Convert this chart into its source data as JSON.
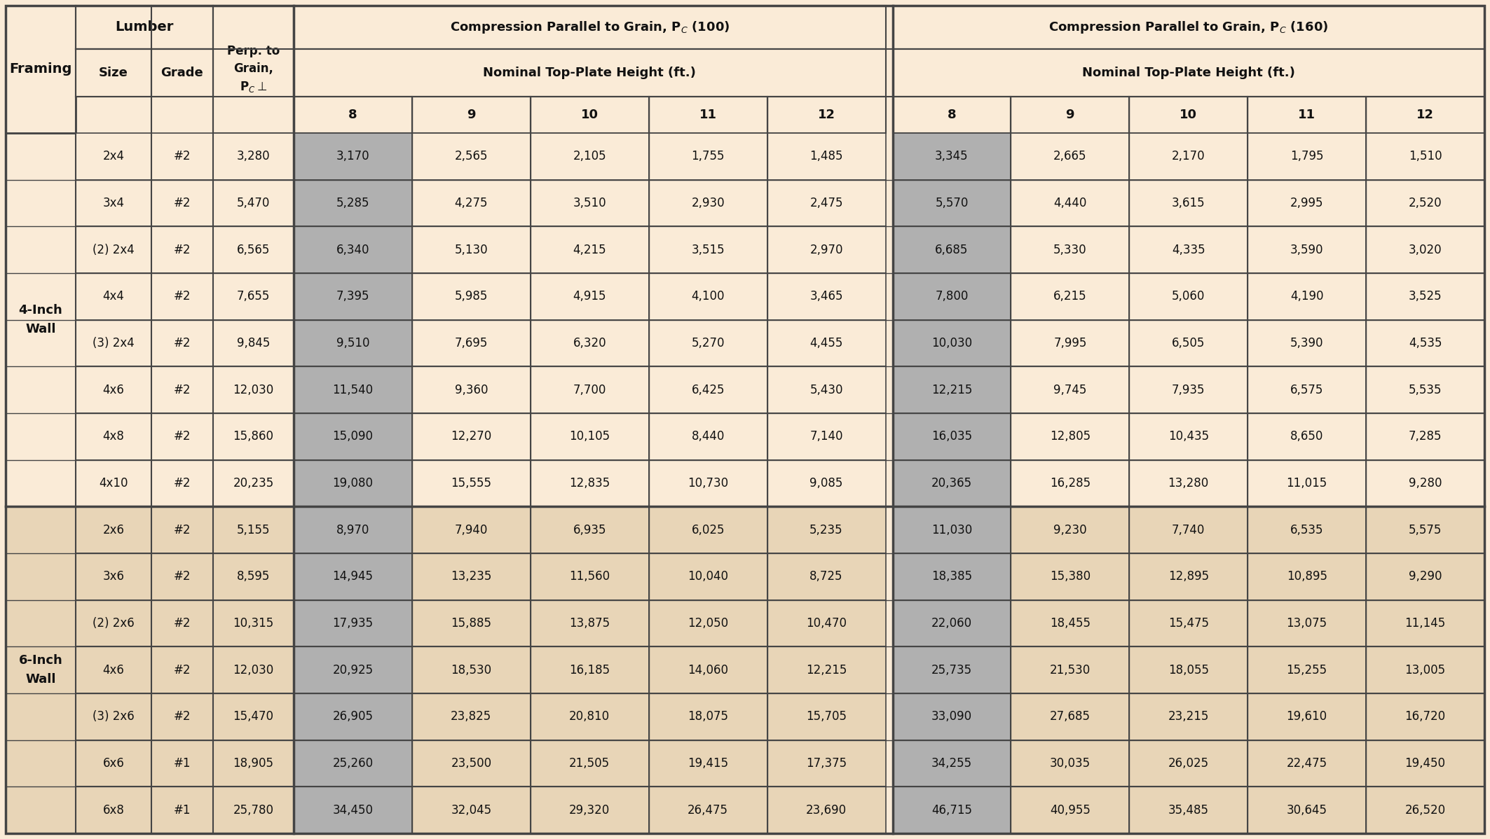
{
  "bg_color": "#faebd7",
  "six_inch_bg": "#e8d5b7",
  "gray_col_bg": "#b0b0b0",
  "border_color": "#444444",
  "text_color": "#111111",
  "col_headers_heights": [
    "8",
    "9",
    "10",
    "11",
    "12"
  ],
  "rows_4inch": [
    {
      "size": "2x4",
      "grade": "#2",
      "perp": "3,280",
      "pc100": [
        "3,170",
        "2,565",
        "2,105",
        "1,755",
        "1,485"
      ],
      "pc160": [
        "3,345",
        "2,665",
        "2,170",
        "1,795",
        "1,510"
      ]
    },
    {
      "size": "3x4",
      "grade": "#2",
      "perp": "5,470",
      "pc100": [
        "5,285",
        "4,275",
        "3,510",
        "2,930",
        "2,475"
      ],
      "pc160": [
        "5,570",
        "4,440",
        "3,615",
        "2,995",
        "2,520"
      ]
    },
    {
      "size": "(2) 2x4",
      "grade": "#2",
      "perp": "6,565",
      "pc100": [
        "6,340",
        "5,130",
        "4,215",
        "3,515",
        "2,970"
      ],
      "pc160": [
        "6,685",
        "5,330",
        "4,335",
        "3,590",
        "3,020"
      ]
    },
    {
      "size": "4x4",
      "grade": "#2",
      "perp": "7,655",
      "pc100": [
        "7,395",
        "5,985",
        "4,915",
        "4,100",
        "3,465"
      ],
      "pc160": [
        "7,800",
        "6,215",
        "5,060",
        "4,190",
        "3,525"
      ]
    },
    {
      "size": "(3) 2x4",
      "grade": "#2",
      "perp": "9,845",
      "pc100": [
        "9,510",
        "7,695",
        "6,320",
        "5,270",
        "4,455"
      ],
      "pc160": [
        "10,030",
        "7,995",
        "6,505",
        "5,390",
        "4,535"
      ]
    },
    {
      "size": "4x6",
      "grade": "#2",
      "perp": "12,030",
      "pc100": [
        "11,540",
        "9,360",
        "7,700",
        "6,425",
        "5,430"
      ],
      "pc160": [
        "12,215",
        "9,745",
        "7,935",
        "6,575",
        "5,535"
      ]
    },
    {
      "size": "4x8",
      "grade": "#2",
      "perp": "15,860",
      "pc100": [
        "15,090",
        "12,270",
        "10,105",
        "8,440",
        "7,140"
      ],
      "pc160": [
        "16,035",
        "12,805",
        "10,435",
        "8,650",
        "7,285"
      ]
    },
    {
      "size": "4x10",
      "grade": "#2",
      "perp": "20,235",
      "pc100": [
        "19,080",
        "15,555",
        "12,835",
        "10,730",
        "9,085"
      ],
      "pc160": [
        "20,365",
        "16,285",
        "13,280",
        "11,015",
        "9,280"
      ]
    }
  ],
  "rows_6inch": [
    {
      "size": "2x6",
      "grade": "#2",
      "perp": "5,155",
      "pc100": [
        "8,970",
        "7,940",
        "6,935",
        "6,025",
        "5,235"
      ],
      "pc160": [
        "11,030",
        "9,230",
        "7,740",
        "6,535",
        "5,575"
      ]
    },
    {
      "size": "3x6",
      "grade": "#2",
      "perp": "8,595",
      "pc100": [
        "14,945",
        "13,235",
        "11,560",
        "10,040",
        "8,725"
      ],
      "pc160": [
        "18,385",
        "15,380",
        "12,895",
        "10,895",
        "9,290"
      ]
    },
    {
      "size": "(2) 2x6",
      "grade": "#2",
      "perp": "10,315",
      "pc100": [
        "17,935",
        "15,885",
        "13,875",
        "12,050",
        "10,470"
      ],
      "pc160": [
        "22,060",
        "18,455",
        "15,475",
        "13,075",
        "11,145"
      ]
    },
    {
      "size": "4x6",
      "grade": "#2",
      "perp": "12,030",
      "pc100": [
        "20,925",
        "18,530",
        "16,185",
        "14,060",
        "12,215"
      ],
      "pc160": [
        "25,735",
        "21,530",
        "18,055",
        "15,255",
        "13,005"
      ]
    },
    {
      "size": "(3) 2x6",
      "grade": "#2",
      "perp": "15,470",
      "pc100": [
        "26,905",
        "23,825",
        "20,810",
        "18,075",
        "15,705"
      ],
      "pc160": [
        "33,090",
        "27,685",
        "23,215",
        "19,610",
        "16,720"
      ]
    },
    {
      "size": "6x6",
      "grade": "#1",
      "perp": "18,905",
      "pc100": [
        "25,260",
        "23,500",
        "21,505",
        "19,415",
        "17,375"
      ],
      "pc160": [
        "34,255",
        "30,035",
        "26,025",
        "22,475",
        "19,450"
      ]
    },
    {
      "size": "6x8",
      "grade": "#1",
      "perp": "25,780",
      "pc100": [
        "34,450",
        "32,045",
        "29,320",
        "26,475",
        "23,690"
      ],
      "pc160": [
        "46,715",
        "40,955",
        "35,485",
        "30,645",
        "26,520"
      ]
    }
  ]
}
